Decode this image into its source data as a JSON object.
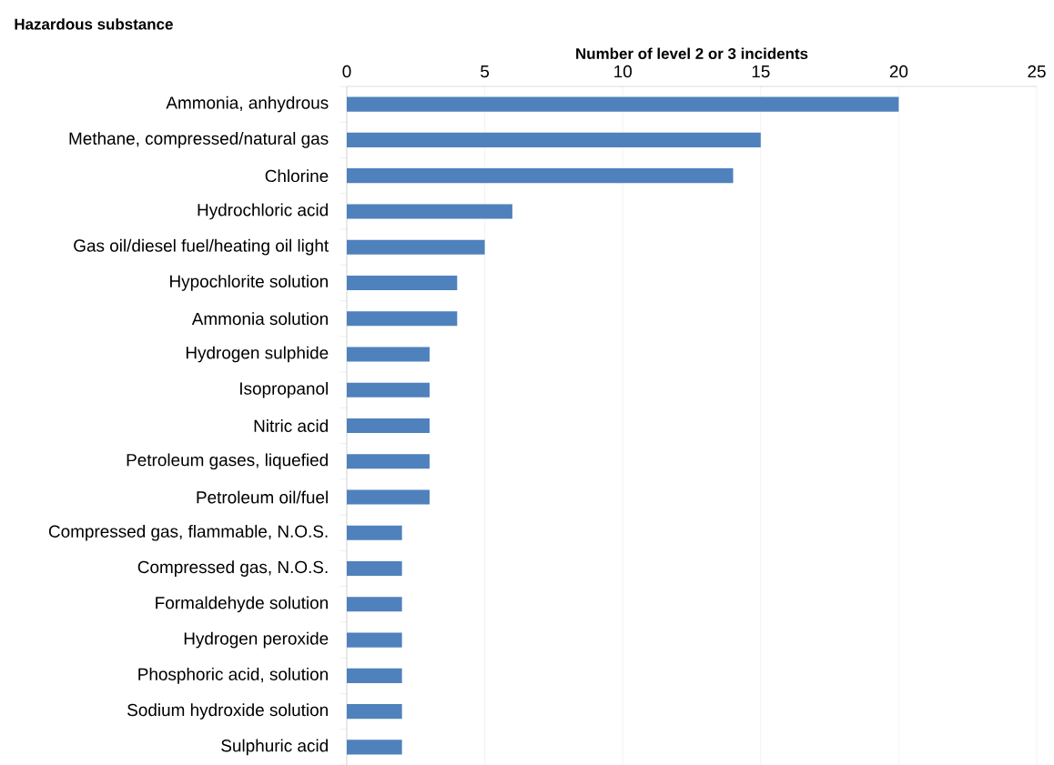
{
  "chart_data": {
    "type": "bar",
    "orientation": "horizontal",
    "xlabel": "Number of level 2 or 3 incidents",
    "ylabel": "Hazardous substance",
    "categories": [
      "Ammonia, anhydrous",
      "Methane, compressed/natural gas",
      "Chlorine",
      "Hydrochloric acid",
      "Gas oil/diesel fuel/heating oil light",
      "Hypochlorite solution",
      "Ammonia solution",
      "Hydrogen sulphide",
      "Isopropanol",
      "Nitric acid",
      "Petroleum gases, liquefied",
      "Petroleum oil/fuel",
      "Compressed gas, flammable, N.O.S.",
      "Compressed gas, N.O.S.",
      "Formaldehyde solution",
      "Hydrogen peroxide",
      "Phosphoric acid, solution",
      "Sodium hydroxide solution",
      "Sulphuric acid"
    ],
    "values": [
      20,
      15,
      14,
      6,
      5,
      4,
      4,
      3,
      3,
      3,
      3,
      3,
      2,
      2,
      2,
      2,
      2,
      2,
      2
    ],
    "color": "#4f81bd",
    "xlim": [
      0,
      25
    ],
    "xticks": [
      0,
      5,
      10,
      15,
      20,
      25
    ],
    "grid": "x"
  }
}
